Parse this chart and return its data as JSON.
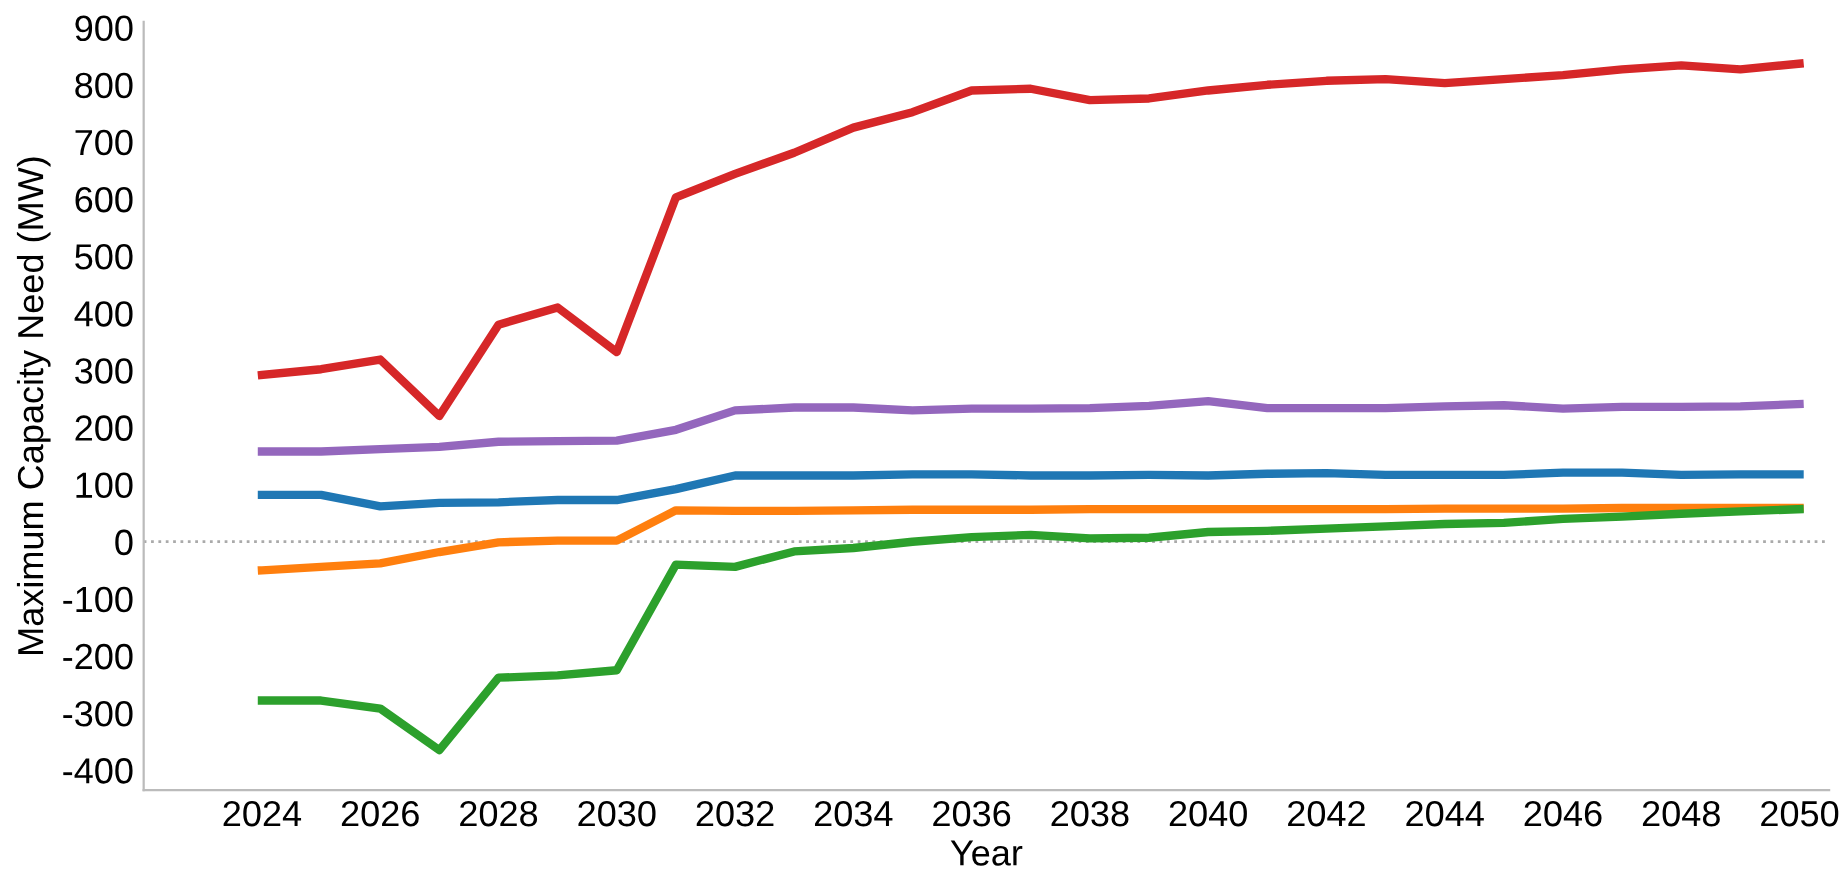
{
  "chart_data": {
    "type": "line",
    "xlabel": "Year",
    "ylabel": "Maximum Capacity Need (MW)",
    "x": [
      2024,
      2025,
      2026,
      2027,
      2028,
      2029,
      2030,
      2031,
      2032,
      2033,
      2034,
      2035,
      2036,
      2037,
      2038,
      2039,
      2040,
      2041,
      2042,
      2043,
      2044,
      2045,
      2046,
      2047,
      2048,
      2049,
      2050
    ],
    "series": [
      {
        "color": "#d62728",
        "values": [
          292,
          302,
          319,
          220,
          380,
          410,
          332,
          603,
          644,
          681,
          725,
          752,
          790,
          793,
          773,
          776,
          790,
          800,
          807,
          810,
          803,
          810,
          817,
          827,
          834,
          827,
          837
        ]
      },
      {
        "color": "#9467bd",
        "values": [
          158,
          158,
          162,
          166,
          175,
          176,
          177,
          196,
          230,
          235,
          235,
          230,
          233,
          233,
          234,
          238,
          246,
          234,
          234,
          234,
          237,
          239,
          233,
          236,
          236,
          237,
          241
        ]
      },
      {
        "color": "#1f77b4",
        "values": [
          82,
          82,
          62,
          68,
          69,
          73,
          73,
          92,
          116,
          116,
          116,
          118,
          118,
          116,
          116,
          117,
          116,
          119,
          120,
          117,
          117,
          117,
          121,
          121,
          117,
          118,
          118
        ]
      },
      {
        "color": "#ff7f0e",
        "values": [
          -50,
          -44,
          -38,
          -18,
          -1,
          2,
          2,
          55,
          54,
          54,
          55,
          56,
          56,
          56,
          57,
          57,
          57,
          57,
          57,
          57,
          58,
          58,
          58,
          59,
          59,
          59,
          59
        ]
      },
      {
        "color": "#2ca02c",
        "values": [
          -278,
          -278,
          -292,
          -365,
          -238,
          -234,
          -225,
          -40,
          -44,
          -17,
          -11,
          0,
          8,
          12,
          6,
          7,
          17,
          19,
          23,
          27,
          31,
          33,
          40,
          44,
          49,
          53,
          57
        ]
      }
    ],
    "xlim": [
      2022,
      2050.5
    ],
    "xticks": [
      2024,
      2026,
      2028,
      2030,
      2032,
      2034,
      2036,
      2038,
      2040,
      2042,
      2044,
      2046,
      2048,
      2050
    ],
    "ylim": [
      -435,
      910
    ],
    "yticks": [
      -400,
      -300,
      -200,
      -100,
      0,
      100,
      200,
      300,
      400,
      500,
      600,
      700,
      800,
      900
    ],
    "ref_lines": [
      {
        "axis": "y",
        "value": 0,
        "color": "#aaaaaa",
        "line_style": "dotted"
      }
    ],
    "grid": false,
    "legend": false,
    "marker": "none",
    "line_style": "solid"
  }
}
